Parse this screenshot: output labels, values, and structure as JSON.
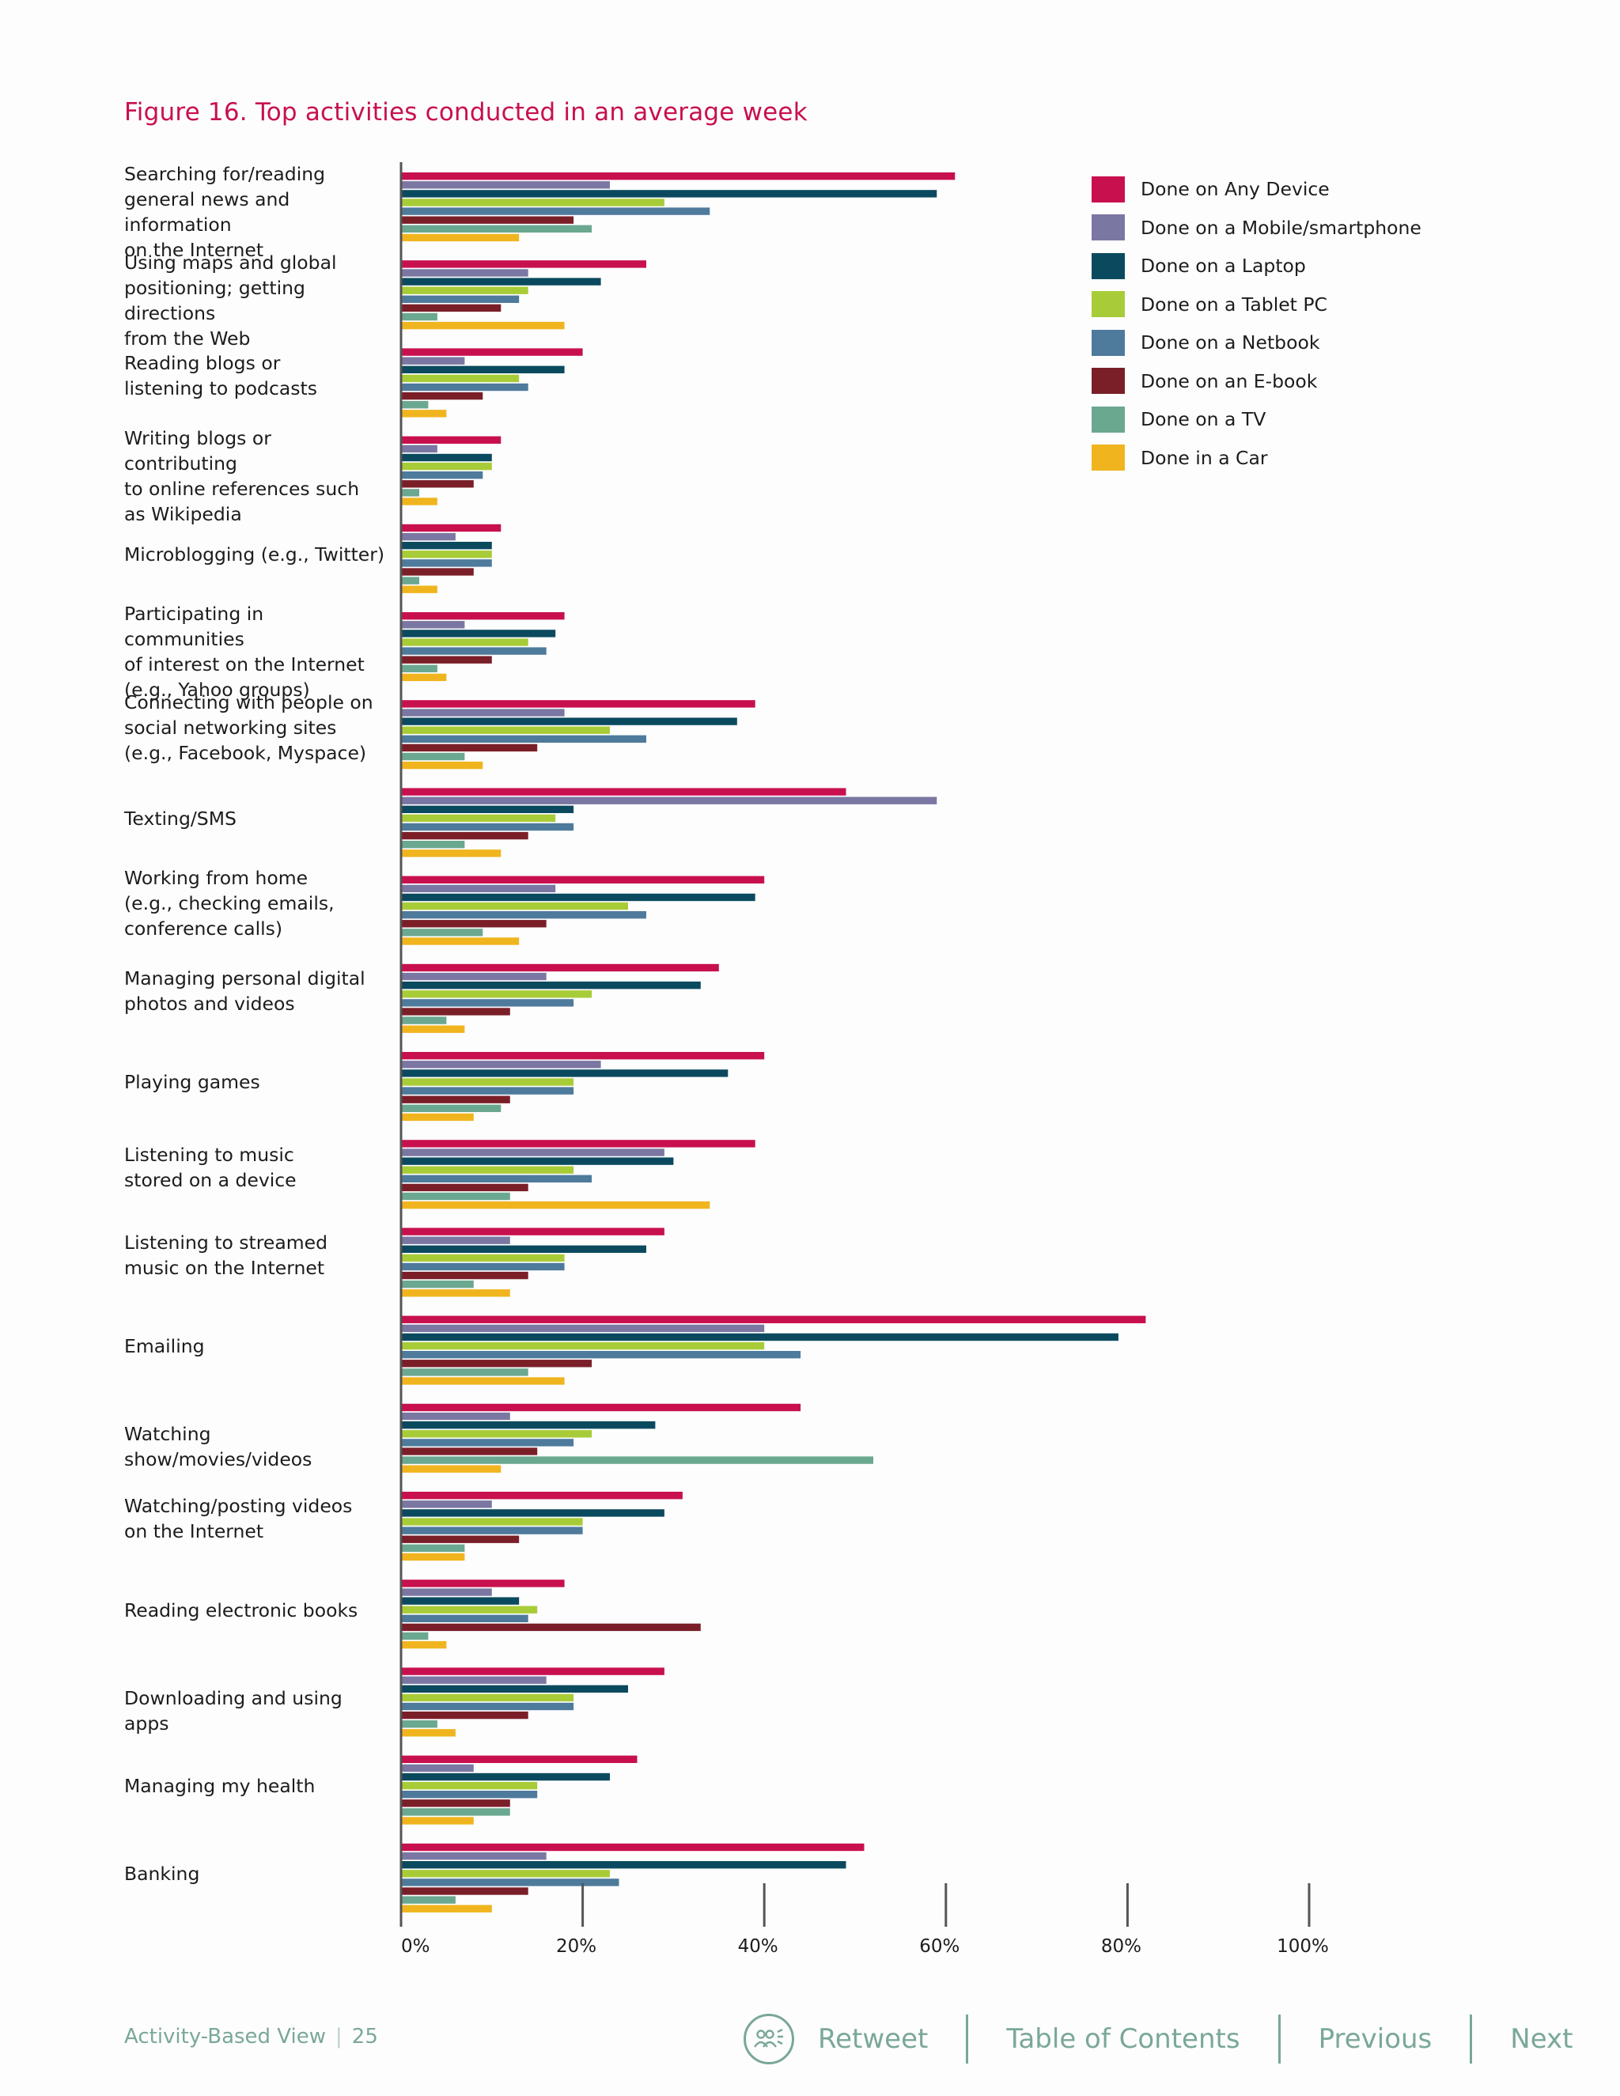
{
  "figure_title": "Figure 16. Top activities conducted in an average week",
  "chart_data": {
    "type": "bar",
    "orientation": "horizontal",
    "title": "Figure 16. Top activities conducted in an average week",
    "xlabel": "",
    "ylabel": "",
    "xlim": [
      0,
      100
    ],
    "xticks": [
      "0%",
      "20%",
      "40%",
      "60%",
      "80%",
      "100%"
    ],
    "legend_position": "top-right",
    "grid": false,
    "categories": [
      "Searching for/reading general news and information on the Internet",
      "Using maps and global positioning; getting directions from the Web",
      "Reading blogs or listening to podcasts",
      "Writing blogs or contributing to online references such as Wikipedia",
      "Microblogging (e.g., Twitter)",
      "Participating in communities of interest on the Internet (e.g., Yahoo groups)",
      "Connecting with people on social networking sites (e.g., Facebook, Myspace)",
      "Texting/SMS",
      "Working from home (e.g., checking emails, conference calls)",
      "Managing personal digital photos and videos",
      "Playing games",
      "Listening to music stored on a device",
      "Listening to streamed music on the Internet",
      "Emailing",
      "Watching show/movies/videos",
      "Watching/posting videos on the Internet",
      "Reading electronic books",
      "Downloading and using apps",
      "Managing my health",
      "Banking"
    ],
    "category_lines": [
      [
        "Searching for/reading",
        "general news and information",
        "on the Internet"
      ],
      [
        "Using maps and global",
        "positioning; getting directions",
        "from the Web"
      ],
      [
        "Reading blogs or",
        "listening to podcasts"
      ],
      [
        "Writing blogs or contributing",
        "to online references such",
        "as Wikipedia"
      ],
      [
        "Microblogging (e.g., Twitter)"
      ],
      [
        "Participating in communities",
        "of interest on the Internet",
        "(e.g., Yahoo groups)"
      ],
      [
        "Connecting with people on",
        "social networking sites",
        "(e.g., Facebook, Myspace)"
      ],
      [
        "Texting/SMS"
      ],
      [
        "Working from home",
        "(e.g., checking emails,",
        "conference calls)"
      ],
      [
        "Managing personal digital",
        "photos and videos"
      ],
      [
        "Playing games"
      ],
      [
        "Listening to music",
        "stored on a device"
      ],
      [
        "Listening to streamed",
        "music on the Internet"
      ],
      [
        "Emailing"
      ],
      [
        "Watching show/movies/videos"
      ],
      [
        "Watching/posting videos",
        "on the Internet"
      ],
      [
        "Reading electronic books"
      ],
      [
        "Downloading and using apps"
      ],
      [
        "Managing my health"
      ],
      [
        "Banking"
      ]
    ],
    "series": [
      {
        "name": "Done on Any Device",
        "color": "#c8104f",
        "values": [
          61,
          27,
          20,
          11,
          11,
          18,
          39,
          49,
          40,
          35,
          40,
          39,
          29,
          82,
          44,
          31,
          18,
          29,
          26,
          51
        ]
      },
      {
        "name": "Done on a Mobile/smartphone",
        "color": "#7b77a3",
        "values": [
          23,
          14,
          7,
          4,
          6,
          7,
          18,
          59,
          17,
          16,
          22,
          29,
          12,
          40,
          12,
          10,
          10,
          16,
          8,
          16
        ]
      },
      {
        "name": "Done on a Laptop",
        "color": "#0b4a5e",
        "values": [
          59,
          22,
          18,
          10,
          10,
          17,
          37,
          19,
          39,
          33,
          36,
          30,
          27,
          79,
          28,
          29,
          13,
          25,
          23,
          49
        ]
      },
      {
        "name": "Done on a Tablet PC",
        "color": "#a8cc38",
        "values": [
          29,
          14,
          13,
          10,
          10,
          14,
          23,
          17,
          25,
          21,
          19,
          19,
          18,
          40,
          21,
          20,
          15,
          19,
          15,
          23
        ]
      },
      {
        "name": "Done on a Netbook",
        "color": "#4e7a9c",
        "values": [
          34,
          13,
          14,
          9,
          10,
          16,
          27,
          19,
          27,
          19,
          19,
          21,
          18,
          44,
          19,
          20,
          14,
          19,
          15,
          24
        ]
      },
      {
        "name": "Done on an E-book",
        "color": "#7a1f28",
        "values": [
          19,
          11,
          9,
          8,
          8,
          10,
          15,
          14,
          16,
          12,
          12,
          14,
          14,
          21,
          15,
          13,
          33,
          14,
          12,
          14
        ]
      },
      {
        "name": "Done on a TV",
        "color": "#6ba890",
        "values": [
          21,
          4,
          3,
          2,
          2,
          4,
          7,
          7,
          9,
          5,
          11,
          12,
          8,
          14,
          52,
          7,
          3,
          4,
          12,
          6
        ]
      },
      {
        "name": "Done in a Car",
        "color": "#f0b51e",
        "values": [
          13,
          18,
          5,
          4,
          4,
          5,
          9,
          11,
          13,
          7,
          8,
          34,
          12,
          18,
          11,
          7,
          5,
          6,
          8,
          10
        ]
      }
    ]
  },
  "footer": {
    "section": "Activity-Based View",
    "separator": "|",
    "page_number": "25",
    "retweet_label": "Retweet",
    "toc_label": "Table of Contents",
    "previous_label": "Previous",
    "next_label": "Next"
  }
}
